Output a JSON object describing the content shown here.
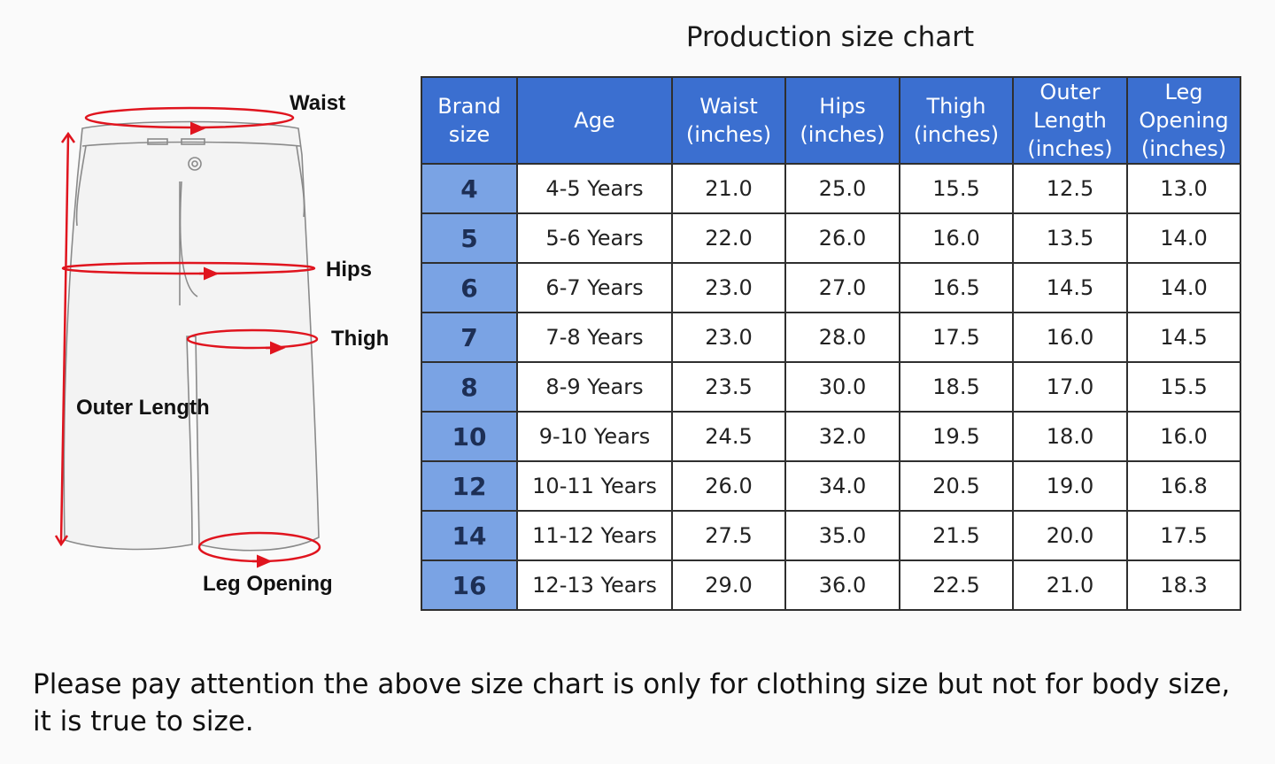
{
  "title": "Production size chart",
  "diagram_labels": {
    "waist": "Waist",
    "hips": "Hips",
    "thigh": "Thigh",
    "outer_length": "Outer Length",
    "leg_opening": "Leg Opening"
  },
  "colors": {
    "header": "#3b6fd0",
    "brand_column": "#7aa3e4",
    "measure_line": "#e0141e"
  },
  "chart_data": {
    "type": "table",
    "title": "Production size chart",
    "columns": [
      "Brand size",
      "Age",
      "Waist (inches)",
      "Hips (inches)",
      "Thigh (inches)",
      "Outer Length (inches)",
      "Leg Opening (inches)"
    ],
    "header_lines": [
      [
        "Brand",
        "size"
      ],
      [
        "Age"
      ],
      [
        "Waist",
        "(inches)"
      ],
      [
        "Hips",
        "(inches)"
      ],
      [
        "Thigh",
        "(inches)"
      ],
      [
        "Outer",
        "Length",
        "(inches)"
      ],
      [
        "Leg",
        "Opening",
        "(inches)"
      ]
    ],
    "rows": [
      [
        "4",
        "4-5 Years",
        "21.0",
        "25.0",
        "15.5",
        "12.5",
        "13.0"
      ],
      [
        "5",
        "5-6 Years",
        "22.0",
        "26.0",
        "16.0",
        "13.5",
        "14.0"
      ],
      [
        "6",
        "6-7 Years",
        "23.0",
        "27.0",
        "16.5",
        "14.5",
        "14.0"
      ],
      [
        "7",
        "7-8 Years",
        "23.0",
        "28.0",
        "17.5",
        "16.0",
        "14.5"
      ],
      [
        "8",
        "8-9 Years",
        "23.5",
        "30.0",
        "18.5",
        "17.0",
        "15.5"
      ],
      [
        "10",
        "9-10 Years",
        "24.5",
        "32.0",
        "19.5",
        "18.0",
        "16.0"
      ],
      [
        "12",
        "10-11 Years",
        "26.0",
        "34.0",
        "20.5",
        "19.0",
        "16.8"
      ],
      [
        "14",
        "11-12 Years",
        "27.5",
        "35.0",
        "21.5",
        "20.0",
        "17.5"
      ],
      [
        "16",
        "12-13 Years",
        "29.0",
        "36.0",
        "22.5",
        "21.0",
        "18.3"
      ]
    ]
  },
  "note": "Please pay attention the above size chart is only for clothing size but not for body size, it is true to size."
}
